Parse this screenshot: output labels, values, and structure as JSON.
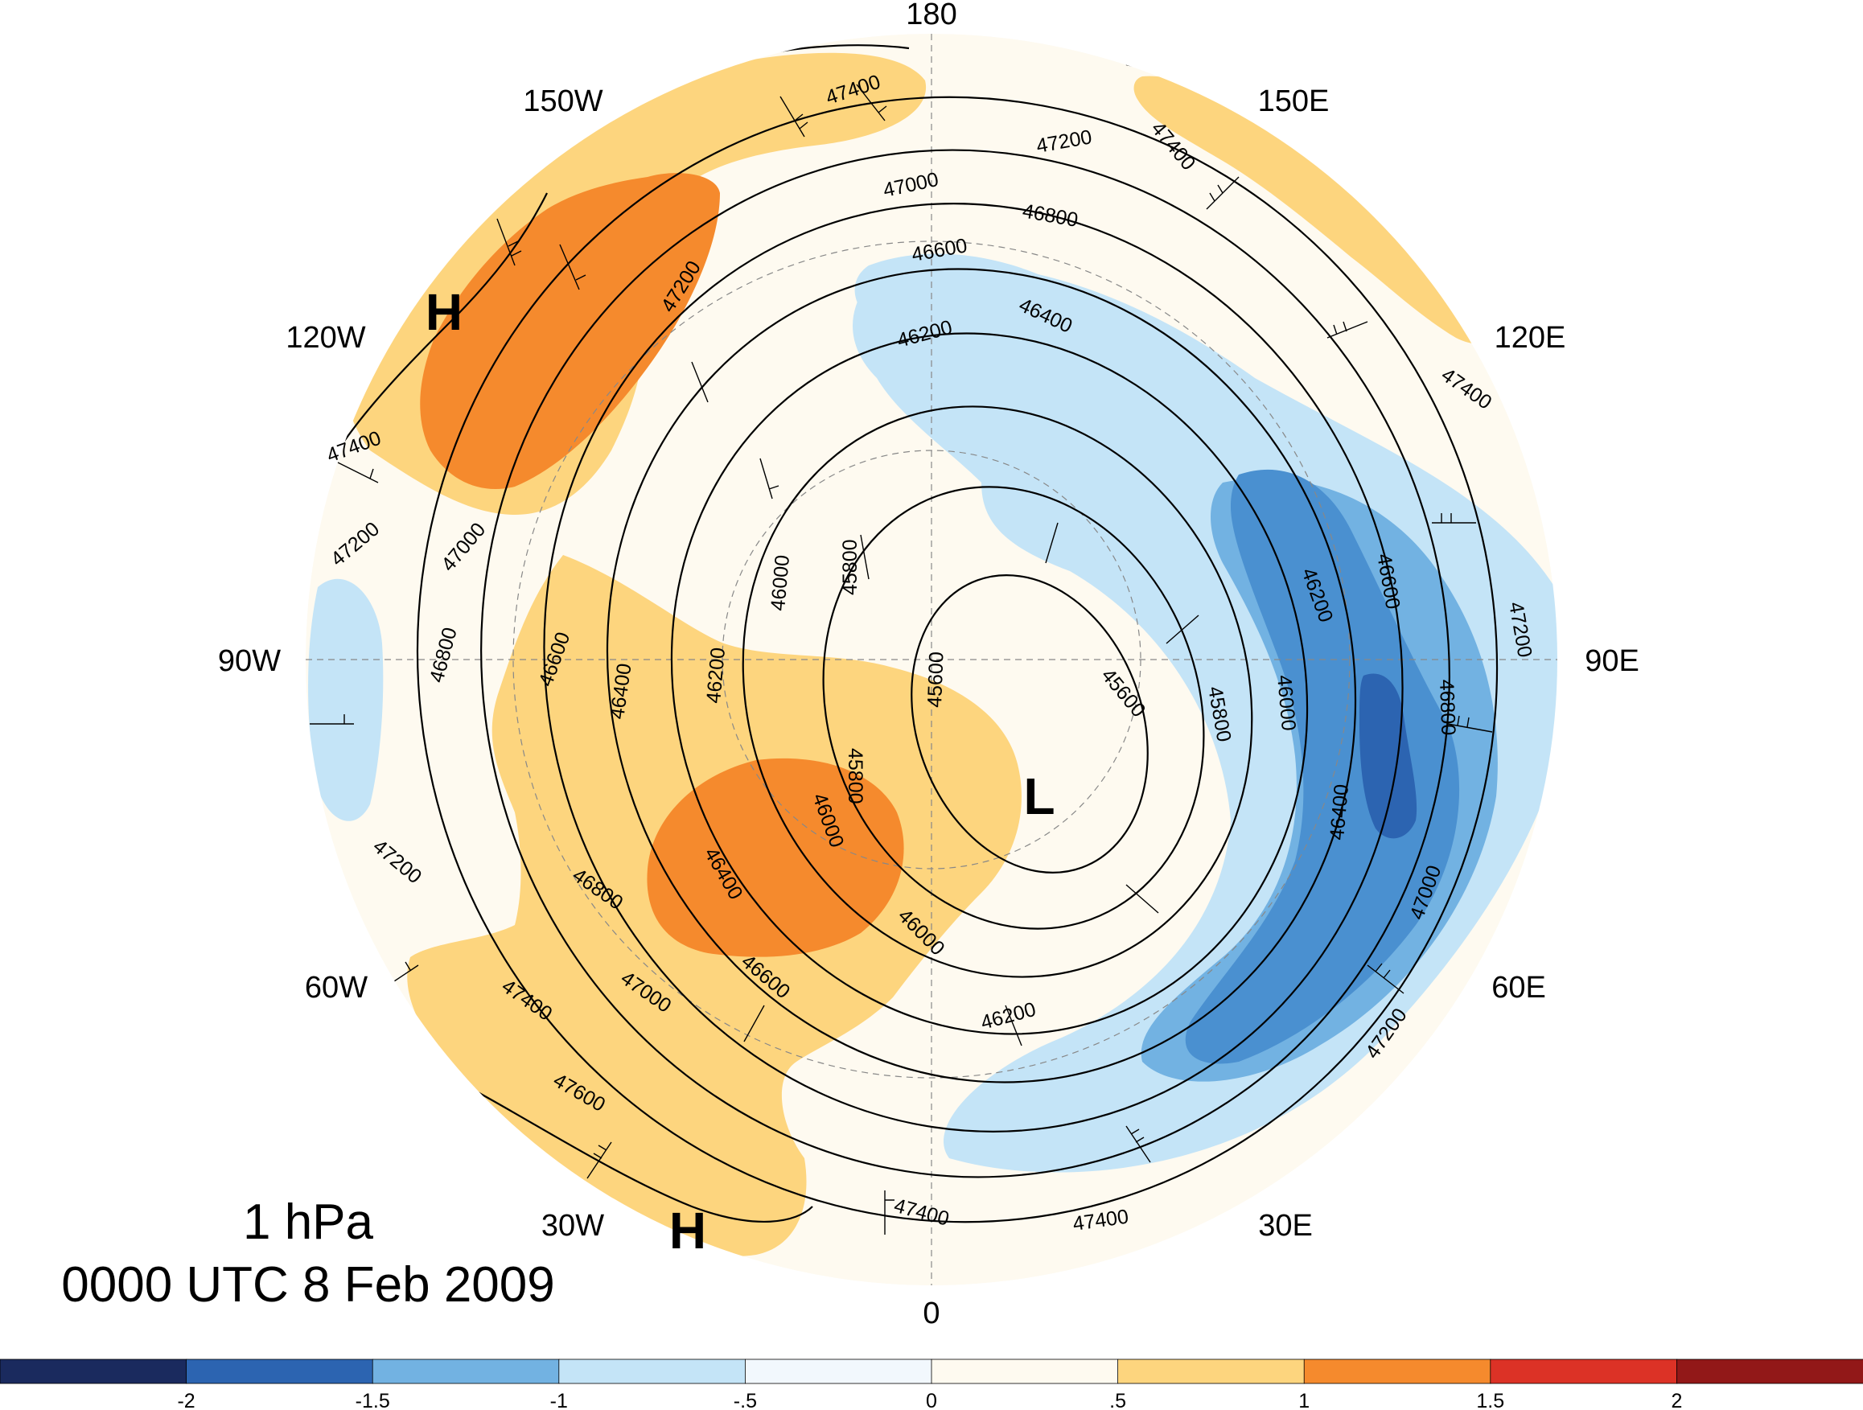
{
  "caption": {
    "level": "1 hPa",
    "time": "0000 UTC 8 Feb 2009"
  },
  "longitude_labels": {
    "lon_180": "180",
    "lon_150W": "150W",
    "lon_150E": "150E",
    "lon_120W": "120W",
    "lon_120E": "120E",
    "lon_90W": "90W",
    "lon_90E": "90E",
    "lon_60W": "60W",
    "lon_60E": "60E",
    "lon_30W": "30W",
    "lon_30E": "30E",
    "lon_0": "0"
  },
  "pressure_centers": {
    "high_north_pacific": "H",
    "low_europe": "L",
    "high_atlantic": "H"
  },
  "contour_labels": {
    "c47400_top": "47400",
    "c47200_top": "47200",
    "c47000_top": "47000",
    "c46800_top": "46800",
    "c46600_top": "46600",
    "c46400_top": "46400",
    "c46200_top": "46200",
    "c47400_ne": "47400",
    "c47400_e": "47400",
    "c47200_nw": "47200",
    "c47400_w": "47400",
    "c47200_w": "47200",
    "c47000_w": "47000",
    "c46800_w": "46800",
    "c46600_w": "46600",
    "c46400_w": "46400",
    "c46200_w": "46200",
    "c46000_nw": "46000",
    "c45800_nw": "45800",
    "c45800_c": "45800",
    "c45600_c": "45600",
    "c45600_e": "45600",
    "c45800_e": "45800",
    "c46000_e": "46000",
    "c46200_e": "46200",
    "c46600_e": "46600",
    "c46800_e": "46800",
    "c46400_e": "46400",
    "c47000_e": "47000",
    "c47200_e": "47200",
    "c47200_se": "47200",
    "c46000_sw": "46000",
    "c46400_sw": "46400",
    "c46000_s": "46000",
    "c46600_sw": "46600",
    "c46800_sw": "46800",
    "c47000_sw": "47000",
    "c47200_sw": "47200",
    "c47400_sw": "47400",
    "c47600_sw": "47600",
    "c46200_s": "46200",
    "c47400_s1": "47400",
    "c47400_s2": "47400"
  },
  "colorbar": {
    "tick_labels": [
      "-2",
      "-1.5",
      "-1",
      "-.5",
      "0",
      ".5",
      "1",
      "1.5",
      "2"
    ],
    "colors": [
      "#1a2a5e",
      "#2c64b1",
      "#72b2e2",
      "#c4e4f7",
      "#f2f8fd",
      "#fefaf0",
      "#fdd57e",
      "#f58a2d",
      "#dc3226",
      "#921818"
    ]
  },
  "shading_colors": {
    "light_orange": "#fdd57e",
    "orange": "#f58a2d",
    "light_blue": "#c4e4f7",
    "medium_blue": "#72b2e2",
    "blue": "#4a90d0",
    "dark_blue": "#2c64b1",
    "near_white_blue": "#f2f8fd",
    "near_white_orange": "#fefaf0"
  }
}
